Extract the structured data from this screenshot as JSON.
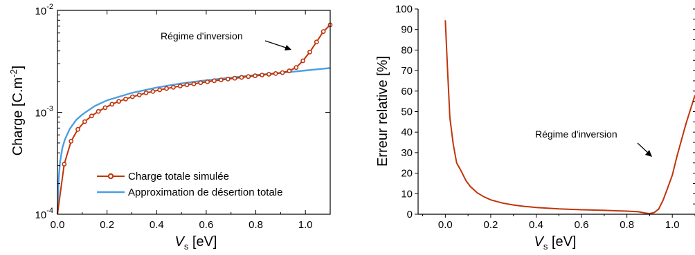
{
  "colors": {
    "simulated": "#c0340a",
    "depletion": "#4a9fe3",
    "axis": "#000000",
    "arrow": "#000000"
  },
  "chart_data": [
    {
      "type": "line",
      "xlabel_main": "V",
      "xlabel_sub": "s",
      "xlabel_unit": "[eV]",
      "ylabel_main": "Charge [C.m",
      "ylabel_sup": "-2",
      "ylabel_end": "]",
      "yscale": "log",
      "xlim": [
        0.0,
        1.1
      ],
      "ylim": [
        0.0001,
        0.01
      ],
      "x_ticks": [
        "0.0",
        "0.2",
        "0.4",
        "0.6",
        "0.8",
        "1.0"
      ],
      "y_ticks": [
        {
          "base": "10",
          "exp": "-4"
        },
        {
          "base": "10",
          "exp": "-3"
        },
        {
          "base": "10",
          "exp": "-2"
        }
      ],
      "annotation": "Régime d'inversion",
      "series": [
        {
          "name": "Charge totale simulée",
          "marker": "circle",
          "x": [
            0.0,
            0.0275,
            0.055,
            0.0825,
            0.11,
            0.1375,
            0.165,
            0.1925,
            0.22,
            0.2475,
            0.275,
            0.3025,
            0.33,
            0.3575,
            0.385,
            0.4125,
            0.44,
            0.4675,
            0.495,
            0.5225,
            0.55,
            0.5775,
            0.605,
            0.6325,
            0.66,
            0.6875,
            0.715,
            0.7425,
            0.77,
            0.7975,
            0.825,
            0.8525,
            0.88,
            0.9075,
            0.935,
            0.9625,
            0.99,
            1.0175,
            1.045,
            1.0725,
            1.1
          ],
          "y": [
            0.0001,
            0.00031,
            0.00052,
            0.00068,
            0.00081,
            0.00092,
            0.00102,
            0.00111,
            0.0012,
            0.00128,
            0.00135,
            0.00142,
            0.00148,
            0.00155,
            0.0016,
            0.00166,
            0.00171,
            0.00176,
            0.00181,
            0.00186,
            0.0019,
            0.00195,
            0.00199,
            0.00204,
            0.00208,
            0.00212,
            0.00216,
            0.0022,
            0.00224,
            0.00228,
            0.00232,
            0.00236,
            0.0024,
            0.00245,
            0.00255,
            0.00275,
            0.0032,
            0.0039,
            0.0049,
            0.0062,
            0.0072
          ]
        },
        {
          "name": "Approximation de désertion totale",
          "marker": "none",
          "x": [
            0.0,
            0.005,
            0.01,
            0.02,
            0.03,
            0.05,
            0.075,
            0.1,
            0.15,
            0.2,
            0.3,
            0.4,
            0.5,
            0.6,
            0.7,
            0.8,
            0.9,
            1.0,
            1.1
          ],
          "y": [
            0.0001,
            0.00022,
            0.00032,
            0.00045,
            0.00054,
            0.00069,
            0.00084,
            0.00095,
            0.00115,
            0.00131,
            0.00155,
            0.00175,
            0.00192,
            0.00206,
            0.00219,
            0.00232,
            0.00244,
            0.00257,
            0.00272
          ]
        }
      ]
    },
    {
      "type": "line",
      "xlabel_main": "V",
      "xlabel_sub": "s",
      "xlabel_unit": "[eV]",
      "ylabel": "Erreur relative [%]",
      "xlim": [
        -0.12,
        1.1
      ],
      "ylim": [
        0,
        100
      ],
      "x_ticks": [
        "0.0",
        "0.2",
        "0.4",
        "0.6",
        "0.8",
        "1.0"
      ],
      "y_ticks": [
        "0",
        "10",
        "20",
        "30",
        "40",
        "50",
        "60",
        "70",
        "80",
        "90",
        "100"
      ],
      "annotation": "Régime d'inversion",
      "series": [
        {
          "x": [
            0.0,
            0.01,
            0.02,
            0.035,
            0.05,
            0.07,
            0.09,
            0.11,
            0.14,
            0.17,
            0.2,
            0.25,
            0.3,
            0.35,
            0.4,
            0.5,
            0.6,
            0.7,
            0.8,
            0.85,
            0.88,
            0.9,
            0.92,
            0.94,
            0.96,
            0.98,
            1.0,
            1.02,
            1.04,
            1.06,
            1.08,
            1.1
          ],
          "y": [
            94.5,
            70,
            47,
            34,
            25,
            21,
            16.5,
            13.5,
            10.5,
            8.5,
            7,
            5.5,
            4.5,
            3.8,
            3.3,
            2.6,
            2.2,
            1.9,
            1.5,
            1.2,
            0.6,
            0.3,
            0.8,
            2.5,
            7,
            13,
            19,
            28,
            36,
            44,
            51,
            58
          ]
        }
      ]
    }
  ]
}
